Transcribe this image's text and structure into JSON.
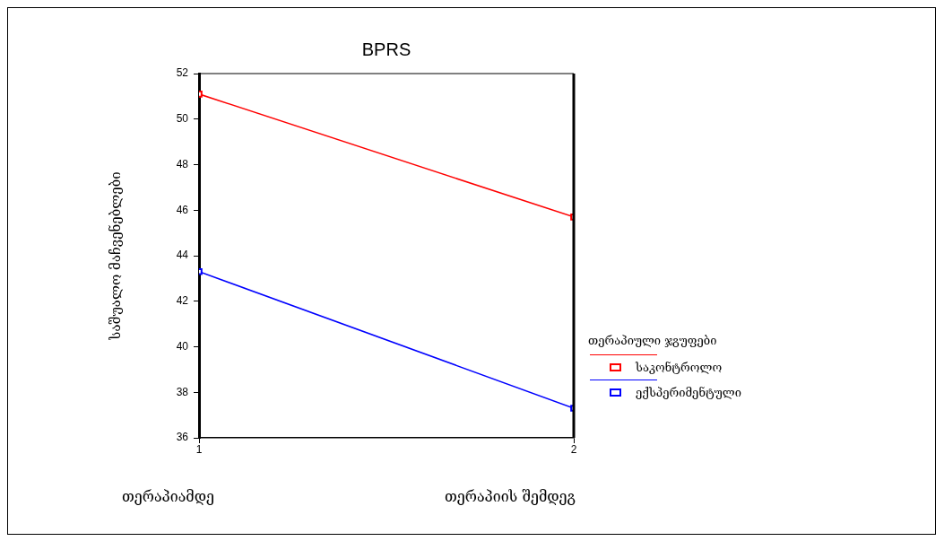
{
  "chart_data": {
    "type": "line",
    "title": "BPRS",
    "ylabel": "საშუალო მაჩვენებლები",
    "legend_title": "თერაპიული ჯგუფები",
    "legend": "right",
    "marker": "square",
    "line_style": "solid",
    "grid": false,
    "x": [
      1,
      2
    ],
    "xlim": [
      1,
      2
    ],
    "xticks": [
      1,
      2
    ],
    "ylim": [
      36,
      52
    ],
    "yticks": [
      36,
      38,
      40,
      42,
      44,
      46,
      48,
      50,
      52
    ],
    "series": [
      {
        "name": "საკონტროლო",
        "color": "#ff0000",
        "values": [
          51.1,
          45.7
        ]
      },
      {
        "name": "ექსპერიმენტული",
        "color": "#0000ff",
        "values": [
          43.3,
          37.3
        ]
      }
    ],
    "annotations": [
      "თერაპიამდე",
      "თერაპიის შემდეგ"
    ]
  }
}
